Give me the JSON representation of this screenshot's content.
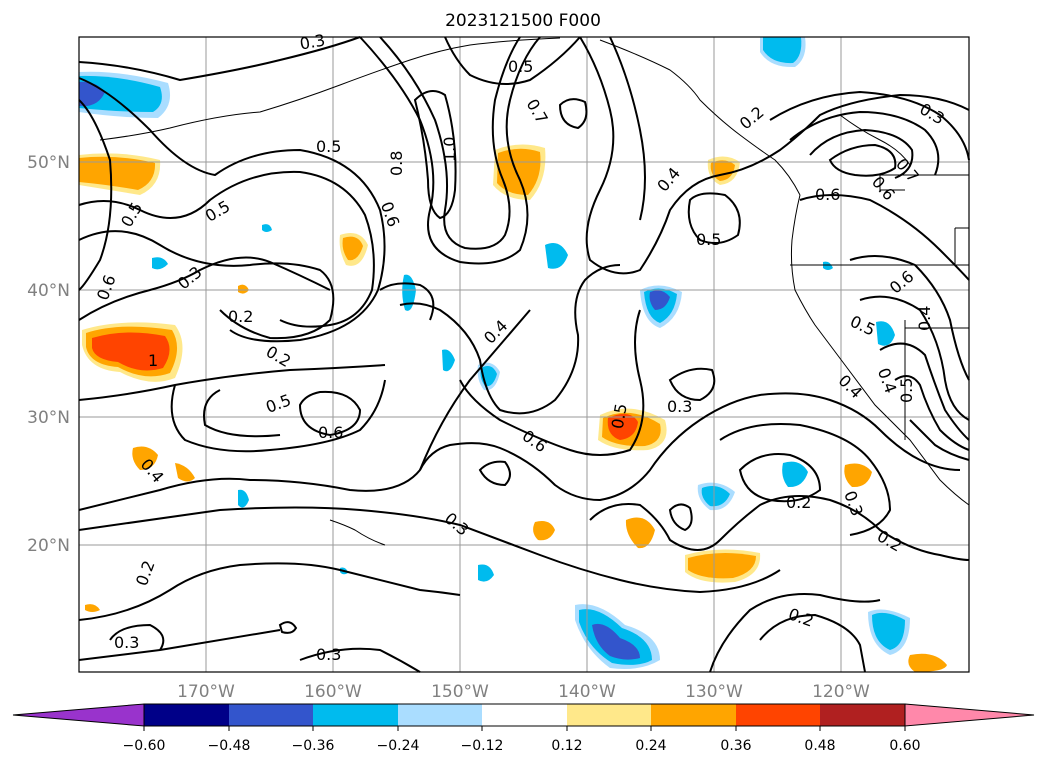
{
  "title": "2023121500 F000",
  "lon_labels": [
    "170°W",
    "160°W",
    "150°W",
    "140°W",
    "130°W",
    "120°W"
  ],
  "lat_labels": [
    "50°N",
    "40°N",
    "30°N",
    "20°N"
  ],
  "contour_labels": [
    "0.5",
    "0.7",
    "0.2",
    "0.3",
    "0.5",
    "0.8",
    "1.0",
    "0.6",
    "0.4",
    "0.5",
    "0.6",
    "0.5",
    "0.3",
    "0.2",
    "0.2",
    "0.5",
    "0.6",
    "0.4",
    "0.6",
    "0.5",
    "0.3",
    "0.6",
    "0.5",
    "0.4",
    "0.4",
    "0.5",
    "0.6",
    "0.3",
    "0.2",
    "0.3",
    "0.2",
    "0.2",
    "0.3",
    "0.3",
    "0.2",
    "0.3",
    "0.4",
    "0.4",
    "0.5",
    "0.6",
    "0.7",
    "1"
  ],
  "colorbar": {
    "ticks": [
      "−0.60",
      "−0.48",
      "−0.36",
      "−0.24",
      "−0.12",
      "0.12",
      "0.24",
      "0.36",
      "0.48",
      "0.60"
    ],
    "colors": [
      "#9933cc",
      "#000088",
      "#3355cc",
      "#00bbee",
      "#aaddff",
      "#ffffff",
      "#ffe88a",
      "#ffa500",
      "#ff4400",
      "#b02020",
      "#ff88aa"
    ]
  }
}
